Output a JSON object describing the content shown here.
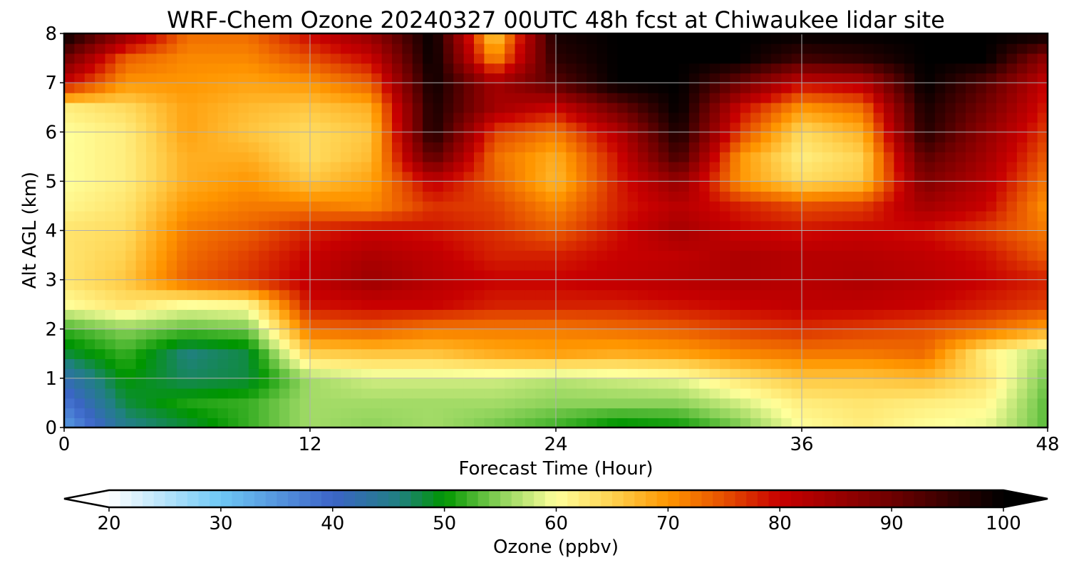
{
  "chart_data": {
    "type": "heatmap",
    "title": "WRF-Chem Ozone  20240327 00UTC 48h fcst at Chiwaukee lidar site",
    "xlabel": "Forecast Time (Hour)",
    "ylabel": "Alt AGL (km)",
    "xlim": [
      0,
      48
    ],
    "ylim": [
      0,
      8
    ],
    "xticks": [
      "0",
      "12",
      "24",
      "36",
      "48"
    ],
    "yticks": [
      "0",
      "1",
      "2",
      "3",
      "4",
      "5",
      "6",
      "7",
      "8"
    ],
    "grid": true,
    "x_hours": [
      0,
      3,
      6,
      9,
      12,
      15,
      18,
      21,
      24,
      27,
      30,
      33,
      36,
      39,
      42,
      45,
      48
    ],
    "y_km": [
      0,
      0.5,
      1,
      1.5,
      2,
      2.5,
      3,
      3.5,
      4,
      4.5,
      5,
      5.5,
      6,
      6.5,
      7,
      7.5,
      8
    ],
    "ozone_ppbv": [
      [
        34,
        45,
        48,
        52,
        56,
        55,
        56,
        54,
        52,
        49,
        50,
        54,
        60,
        62,
        60,
        59,
        53
      ],
      [
        38,
        48,
        51,
        52,
        56,
        56,
        56,
        56,
        55,
        55,
        55,
        58,
        62,
        63,
        62,
        61,
        53
      ],
      [
        42,
        50,
        47,
        48,
        56,
        58,
        58,
        58,
        57,
        58,
        59,
        63,
        66,
        66,
        67,
        63,
        54
      ],
      [
        48,
        52,
        46,
        48,
        65,
        66,
        66,
        68,
        69,
        68,
        69,
        71,
        72,
        72,
        73,
        62,
        56
      ],
      [
        52,
        55,
        53,
        54,
        73,
        74,
        72,
        72,
        72,
        73,
        74,
        76,
        77,
        76,
        75,
        73,
        69
      ],
      [
        60,
        63,
        60,
        61,
        79,
        80,
        80,
        78,
        78,
        78,
        79,
        80,
        81,
        81,
        80,
        78,
        76
      ],
      [
        63,
        66,
        74,
        77,
        81,
        85,
        82,
        80,
        80,
        81,
        82,
        83,
        82,
        83,
        82,
        80,
        78
      ],
      [
        63,
        65,
        73,
        76,
        80,
        83,
        81,
        78,
        78,
        80,
        81,
        83,
        82,
        82,
        81,
        79,
        74
      ],
      [
        63,
        64,
        72,
        74,
        78,
        80,
        79,
        77,
        74,
        79,
        84,
        80,
        79,
        80,
        79,
        76,
        72
      ],
      [
        61,
        63,
        70,
        72,
        72,
        71,
        77,
        76,
        71,
        78,
        82,
        78,
        75,
        76,
        84,
        80,
        70
      ],
      [
        60,
        62,
        68,
        70,
        66,
        69,
        81,
        74,
        67,
        78,
        86,
        70,
        64,
        66,
        88,
        82,
        72
      ],
      [
        60,
        62,
        68,
        68,
        64,
        67,
        92,
        73,
        68,
        79,
        94,
        70,
        62,
        65,
        92,
        84,
        74
      ],
      [
        60,
        62,
        69,
        66,
        64,
        66,
        98,
        76,
        72,
        82,
        98,
        76,
        64,
        68,
        97,
        86,
        76
      ],
      [
        62,
        64,
        69,
        67,
        66,
        68,
        98,
        84,
        80,
        90,
        100,
        80,
        70,
        73,
        98,
        89,
        78
      ],
      [
        80,
        70,
        70,
        69,
        70,
        74,
        99,
        84,
        92,
        100,
        100,
        90,
        80,
        82,
        100,
        92,
        80
      ],
      [
        90,
        74,
        71,
        71,
        75,
        80,
        100,
        70,
        96,
        100,
        100,
        100,
        94,
        96,
        100,
        100,
        86
      ],
      [
        100,
        86,
        73,
        73,
        80,
        86,
        100,
        64,
        98,
        100,
        100,
        100,
        100,
        100,
        100,
        100,
        100
      ]
    ],
    "colorbar": {
      "label": "Ozone  (ppbv)",
      "min": 20,
      "max": 100,
      "ticks": [
        "20",
        "30",
        "40",
        "50",
        "60",
        "70",
        "80",
        "90",
        "100"
      ],
      "extend": "both",
      "stops": [
        {
          "v": 20,
          "c": "#ffffff"
        },
        {
          "v": 30,
          "c": "#6ec8f5"
        },
        {
          "v": 40,
          "c": "#3c64c8"
        },
        {
          "v": 46,
          "c": "#208080"
        },
        {
          "v": 50,
          "c": "#009600"
        },
        {
          "v": 55,
          "c": "#8cd25a"
        },
        {
          "v": 60,
          "c": "#ffff9b"
        },
        {
          "v": 65,
          "c": "#ffd250"
        },
        {
          "v": 70,
          "c": "#ff9600"
        },
        {
          "v": 75,
          "c": "#e65000"
        },
        {
          "v": 80,
          "c": "#c80000"
        },
        {
          "v": 90,
          "c": "#6e0000"
        },
        {
          "v": 100,
          "c": "#000000"
        }
      ]
    }
  }
}
